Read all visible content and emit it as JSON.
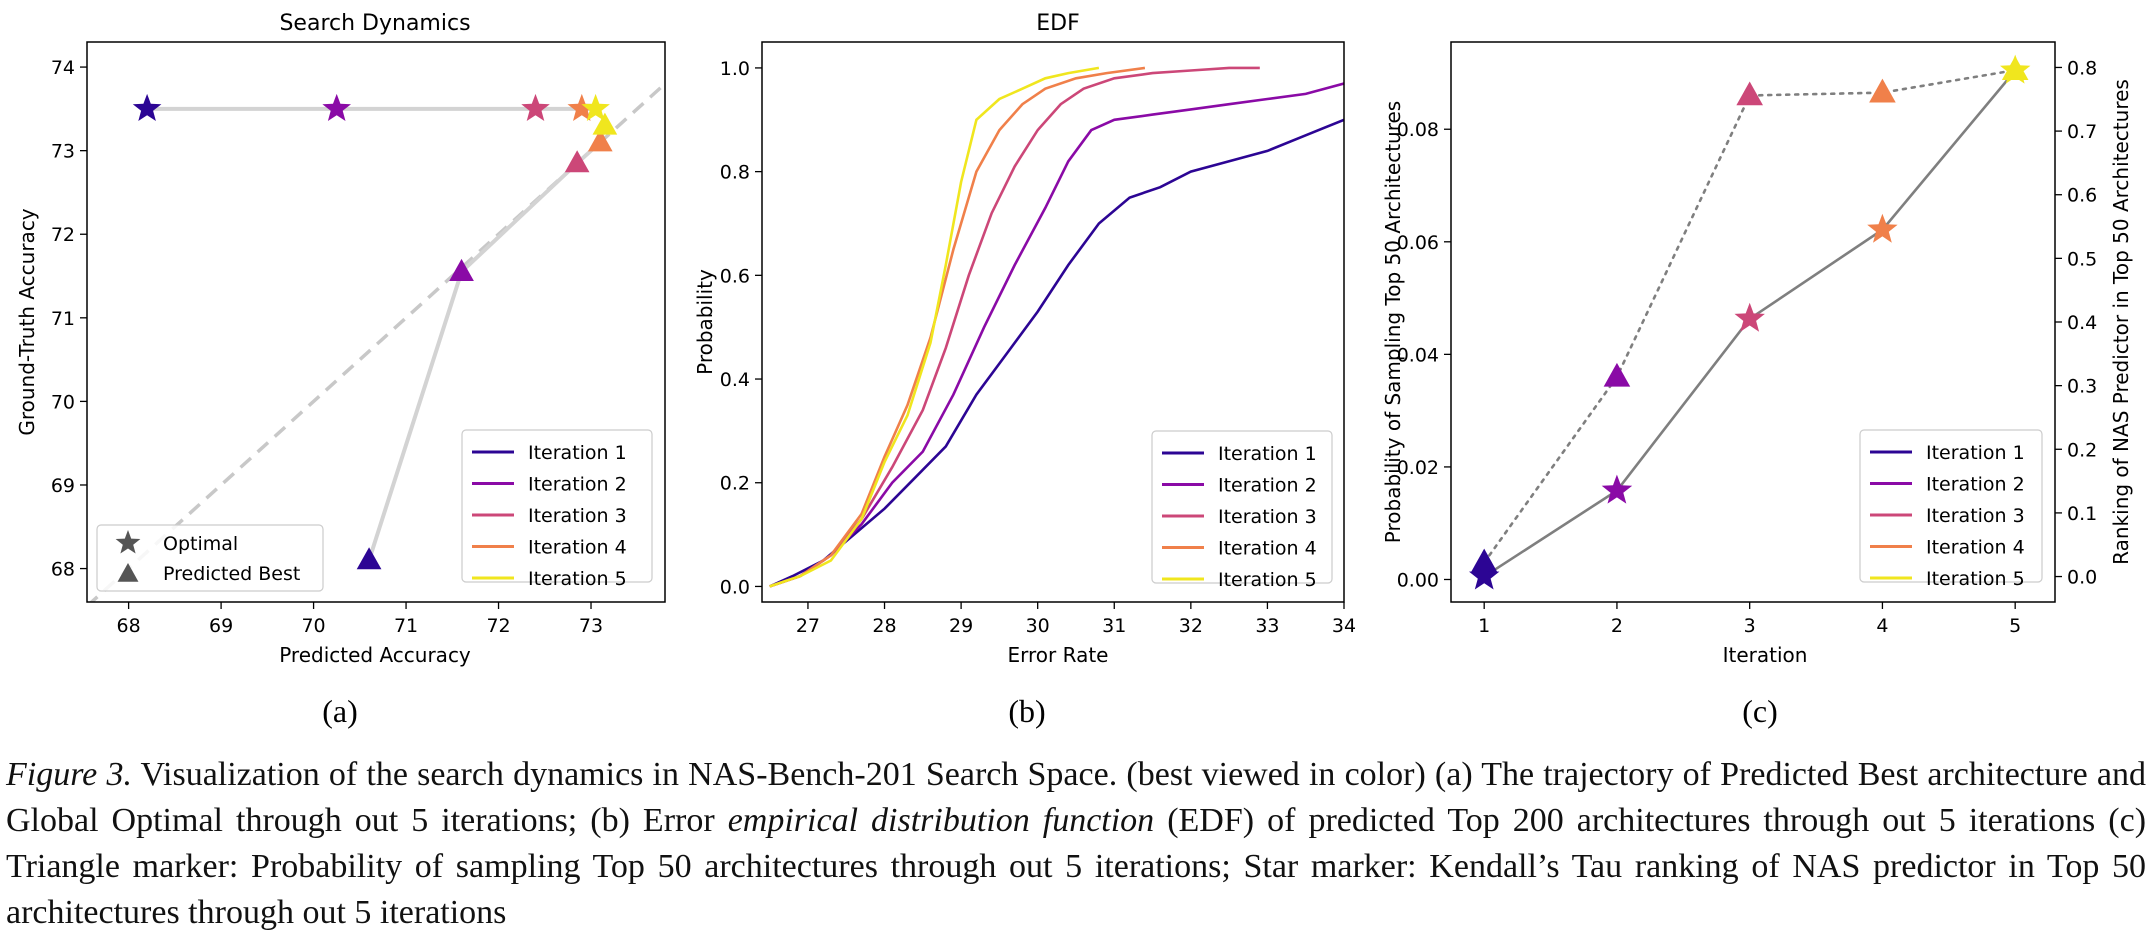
{
  "colors": {
    "iter1": "#2c0594",
    "iter2": "#8a0aa6",
    "iter3": "#cc4778",
    "iter4": "#f0804a",
    "iter5": "#f0e61e",
    "line": "#7f7f7f",
    "traj": "#d3d3d3"
  },
  "legend_iterations": [
    "Iteration 1",
    "Iteration 2",
    "Iteration 3",
    "Iteration 4",
    "Iteration 5"
  ],
  "subplot_labels": [
    "(a)",
    "(b)",
    "(c)"
  ],
  "caption": {
    "fig_label": "Figure 3.",
    "part1": " Visualization of the search dynamics in NAS-Bench-201 Search Space. (best viewed in color) (a) The trajectory of Predicted Best architecture and Global Optimal through out 5 iterations; (b) Error ",
    "italic": "empirical distribution function",
    "part2": " (EDF) of predicted Top 200 architectures through out 5 iterations (c) Triangle marker: Probability of sampling Top 50 architectures through out 5 iterations; Star marker: Kendall’s Tau ranking of NAS predictor in Top 50 architectures through out 5 iterations"
  },
  "chart_data": [
    {
      "type": "scatter",
      "title": "Search Dynamics",
      "xlabel": "Predicted Accuracy",
      "ylabel": "Ground-Truth Accuracy",
      "xlim": [
        67.55,
        73.8
      ],
      "ylim": [
        67.6,
        74.3
      ],
      "xticks": [
        68,
        69,
        70,
        71,
        72,
        73
      ],
      "yticks": [
        68,
        69,
        70,
        71,
        72,
        73,
        74
      ],
      "diagonal": true,
      "marker_legend": [
        "Optimal",
        "Predicted Best"
      ],
      "marker_legend_placement": "lower-left",
      "legend_placement": "lower-right",
      "optimal": [
        {
          "x": 68.2,
          "y": 73.5
        },
        {
          "x": 70.25,
          "y": 73.5
        },
        {
          "x": 72.4,
          "y": 73.5
        },
        {
          "x": 72.9,
          "y": 73.5
        },
        {
          "x": 73.05,
          "y": 73.5
        }
      ],
      "predicted_best": [
        {
          "x": 70.6,
          "y": 68.1
        },
        {
          "x": 71.6,
          "y": 71.55
        },
        {
          "x": 72.85,
          "y": 72.85
        },
        {
          "x": 73.1,
          "y": 73.1
        },
        {
          "x": 73.15,
          "y": 73.3
        }
      ]
    },
    {
      "type": "line",
      "title": "EDF",
      "xlabel": "Error Rate",
      "ylabel": "Probability",
      "xlim": [
        26.4,
        34
      ],
      "ylim": [
        -0.03,
        1.05
      ],
      "xticks": [
        27,
        28,
        29,
        30,
        31,
        32,
        33,
        34
      ],
      "yticks": [
        0.0,
        0.2,
        0.4,
        0.6,
        0.8,
        1.0
      ],
      "legend_placement": "lower-right",
      "series": [
        {
          "name": "Iteration 1",
          "x": [
            26.5,
            26.8,
            27.2,
            27.6,
            28.0,
            28.4,
            28.8,
            29.2,
            29.6,
            30.0,
            30.4,
            30.8,
            31.2,
            31.6,
            32.0,
            32.5,
            33.0,
            33.5,
            34.0
          ],
          "y": [
            0.0,
            0.02,
            0.05,
            0.1,
            0.15,
            0.21,
            0.27,
            0.37,
            0.45,
            0.53,
            0.62,
            0.7,
            0.75,
            0.77,
            0.8,
            0.82,
            0.84,
            0.87,
            0.9
          ]
        },
        {
          "name": "Iteration 2",
          "x": [
            26.5,
            26.9,
            27.3,
            27.7,
            28.1,
            28.5,
            28.9,
            29.3,
            29.7,
            30.1,
            30.4,
            30.7,
            31.0,
            31.5,
            32.0,
            32.5,
            33.0,
            33.5,
            34.0
          ],
          "y": [
            0.0,
            0.02,
            0.06,
            0.12,
            0.2,
            0.26,
            0.37,
            0.5,
            0.62,
            0.73,
            0.82,
            0.88,
            0.9,
            0.91,
            0.92,
            0.93,
            0.94,
            0.95,
            0.97
          ]
        },
        {
          "name": "Iteration 3",
          "x": [
            26.5,
            26.9,
            27.3,
            27.7,
            28.1,
            28.5,
            28.8,
            29.1,
            29.4,
            29.7,
            30.0,
            30.3,
            30.6,
            31.0,
            31.5,
            32.0,
            32.5,
            32.9
          ],
          "y": [
            0.0,
            0.02,
            0.06,
            0.13,
            0.23,
            0.34,
            0.46,
            0.6,
            0.72,
            0.81,
            0.88,
            0.93,
            0.96,
            0.98,
            0.99,
            0.995,
            1.0,
            1.0
          ]
        },
        {
          "name": "Iteration 4",
          "x": [
            26.5,
            26.9,
            27.3,
            27.7,
            28.0,
            28.3,
            28.6,
            28.9,
            29.2,
            29.5,
            29.8,
            30.1,
            30.5,
            30.9,
            31.4
          ],
          "y": [
            0.0,
            0.02,
            0.06,
            0.14,
            0.25,
            0.35,
            0.48,
            0.65,
            0.8,
            0.88,
            0.93,
            0.96,
            0.98,
            0.99,
            1.0
          ]
        },
        {
          "name": "Iteration 5",
          "x": [
            26.5,
            26.9,
            27.3,
            27.7,
            28.0,
            28.3,
            28.6,
            28.8,
            29.0,
            29.2,
            29.5,
            29.8,
            30.1,
            30.4,
            30.8
          ],
          "y": [
            0.0,
            0.02,
            0.05,
            0.13,
            0.24,
            0.33,
            0.47,
            0.62,
            0.78,
            0.9,
            0.94,
            0.96,
            0.98,
            0.99,
            1.0
          ]
        }
      ]
    },
    {
      "type": "line",
      "xlabel": "Iteration",
      "ylabel": "Probability of Sampling Top 50 Architectures",
      "ylabel_right": "Ranking of NAS Predictor in Top 50 Architectures",
      "x": [
        1,
        2,
        3,
        4,
        5
      ],
      "xticks": [
        1,
        2,
        3,
        4,
        5
      ],
      "xlim": [
        0.75,
        5.3
      ],
      "ylim": [
        -0.004,
        0.0955
      ],
      "yticks": [
        0.0,
        0.02,
        0.04,
        0.06,
        0.08
      ],
      "ylim_right": [
        -0.04,
        0.84
      ],
      "yticks_right": [
        0.0,
        0.1,
        0.2,
        0.3,
        0.4,
        0.5,
        0.6,
        0.7,
        0.8
      ],
      "legend_placement": "lower-right",
      "probability_triangles": [
        0.003,
        0.036,
        0.086,
        0.0865,
        0.0905
      ],
      "ranking_stars": [
        0.0,
        0.135,
        0.405,
        0.545,
        0.795
      ]
    }
  ]
}
